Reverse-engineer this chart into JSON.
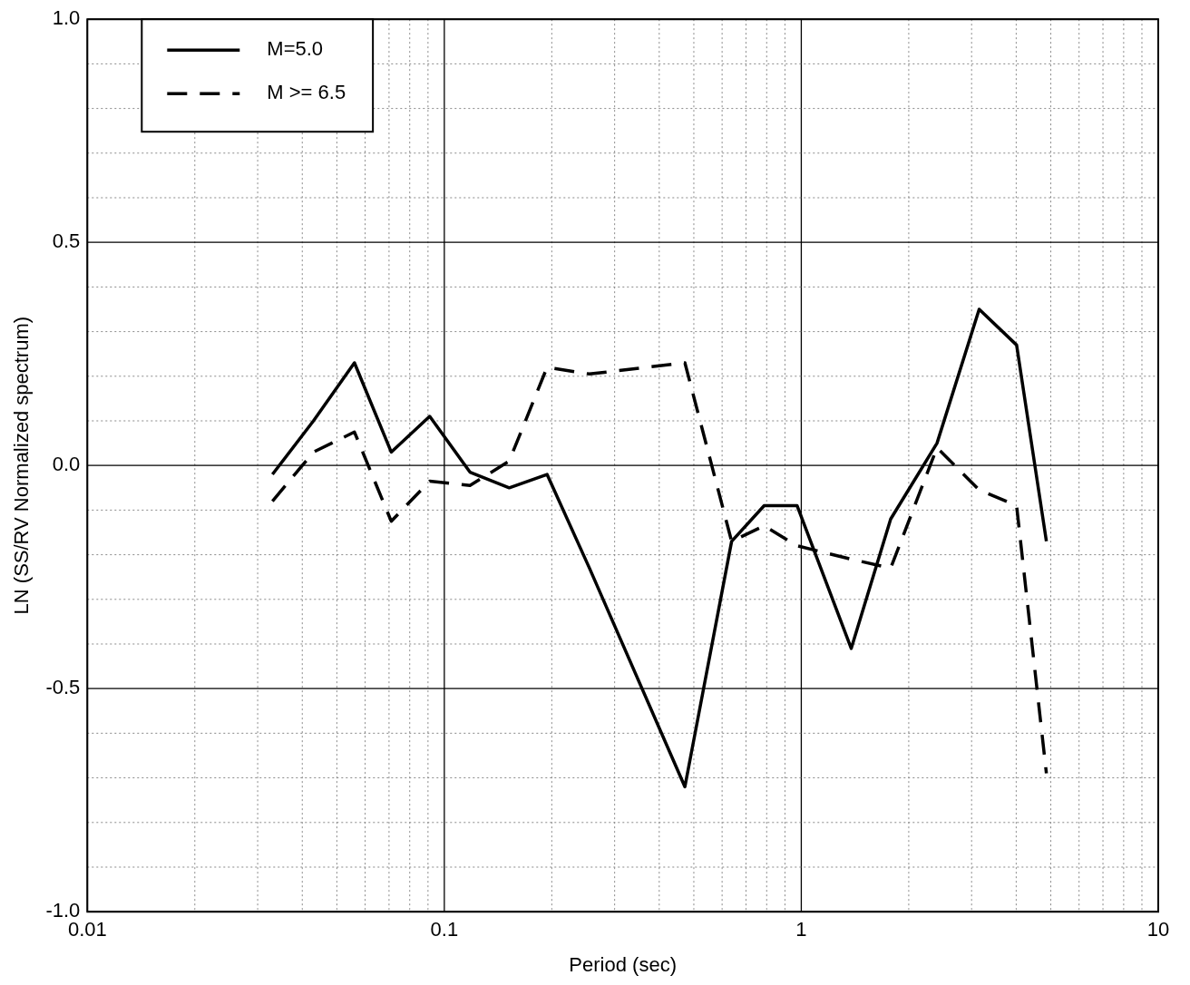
{
  "chart_data": {
    "type": "line",
    "xlabel": "Period (sec)",
    "ylabel": "LN (SS/RV Normalized spectrum)",
    "log": "x",
    "grid": true,
    "legend": "top left",
    "marker": "none",
    "xlim": [
      0.01,
      10
    ],
    "xticks": [
      0.01,
      {
        "value": 0.02,
        "label": null
      },
      {
        "value": 0.03,
        "label": null
      },
      {
        "value": 0.04,
        "label": null
      },
      {
        "value": 0.05,
        "label": null
      },
      {
        "value": 0.06,
        "label": null
      },
      {
        "value": 0.07,
        "label": null
      },
      {
        "value": 0.08,
        "label": null
      },
      {
        "value": 0.09,
        "label": null
      },
      0.1,
      {
        "value": 0.2,
        "label": null
      },
      {
        "value": 0.3,
        "label": null
      },
      {
        "value": 0.4,
        "label": null
      },
      {
        "value": 0.5,
        "label": null
      },
      {
        "value": 0.6,
        "label": null
      },
      {
        "value": 0.7,
        "label": null
      },
      {
        "value": 0.8,
        "label": null
      },
      {
        "value": 0.9,
        "label": null
      },
      1,
      {
        "value": 2,
        "label": null
      },
      {
        "value": 3,
        "label": null
      },
      {
        "value": 4,
        "label": null
      },
      {
        "value": 5,
        "label": null
      },
      {
        "value": 6,
        "label": null
      },
      {
        "value": 7,
        "label": null
      },
      {
        "value": 8,
        "label": null
      },
      {
        "value": 9,
        "label": null
      },
      10
    ],
    "ylim": [
      -1,
      1
    ],
    "yticks": [
      {
        "value": -1,
        "label": "-1.0"
      },
      {
        "value": -0.9,
        "label": null
      },
      {
        "value": -0.8,
        "label": null
      },
      {
        "value": -0.7,
        "label": null
      },
      {
        "value": -0.6,
        "label": null
      },
      {
        "value": -0.5,
        "label": "-0.5"
      },
      {
        "value": -0.4,
        "label": null
      },
      {
        "value": -0.3,
        "label": null
      },
      {
        "value": -0.2,
        "label": null
      },
      {
        "value": -0.1,
        "label": null
      },
      {
        "value": 0,
        "label": "0.0"
      },
      {
        "value": 0.1,
        "label": null
      },
      {
        "value": 0.2,
        "label": null
      },
      {
        "value": 0.3,
        "label": null
      },
      {
        "value": 0.4,
        "label": null
      },
      {
        "value": 0.5,
        "label": "0.5"
      },
      {
        "value": 0.6,
        "label": null
      },
      {
        "value": 0.7,
        "label": null
      },
      {
        "value": 0.8,
        "label": null
      },
      {
        "value": 0.9,
        "label": null
      },
      {
        "value": 1,
        "label": "1.0"
      }
    ],
    "x": [
      0.033,
      0.043,
      0.056,
      0.071,
      0.091,
      0.118,
      0.152,
      0.194,
      0.255,
      0.472,
      0.638,
      0.787,
      0.973,
      1.38,
      1.78,
      2.4,
      3.15,
      4.01,
      4.86
    ],
    "series": [
      {
        "name": "M=5.0",
        "color": "#000000",
        "line_style": "solid",
        "values": [
          -0.02,
          0.1,
          0.23,
          0.03,
          0.11,
          -0.015,
          -0.05,
          -0.02,
          -0.23,
          -0.72,
          -0.17,
          -0.09,
          -0.09,
          -0.41,
          -0.12,
          0.05,
          0.35,
          0.27,
          -0.17
        ]
      },
      {
        "name": "M >= 6.5",
        "color": "#000000",
        "line_style": "dashed",
        "values": [
          -0.08,
          0.03,
          0.075,
          -0.125,
          -0.035,
          -0.045,
          0.01,
          0.22,
          0.205,
          0.23,
          -0.17,
          -0.135,
          -0.18,
          -0.21,
          -0.23,
          0.04,
          -0.055,
          -0.09,
          -0.69
        ]
      }
    ]
  }
}
